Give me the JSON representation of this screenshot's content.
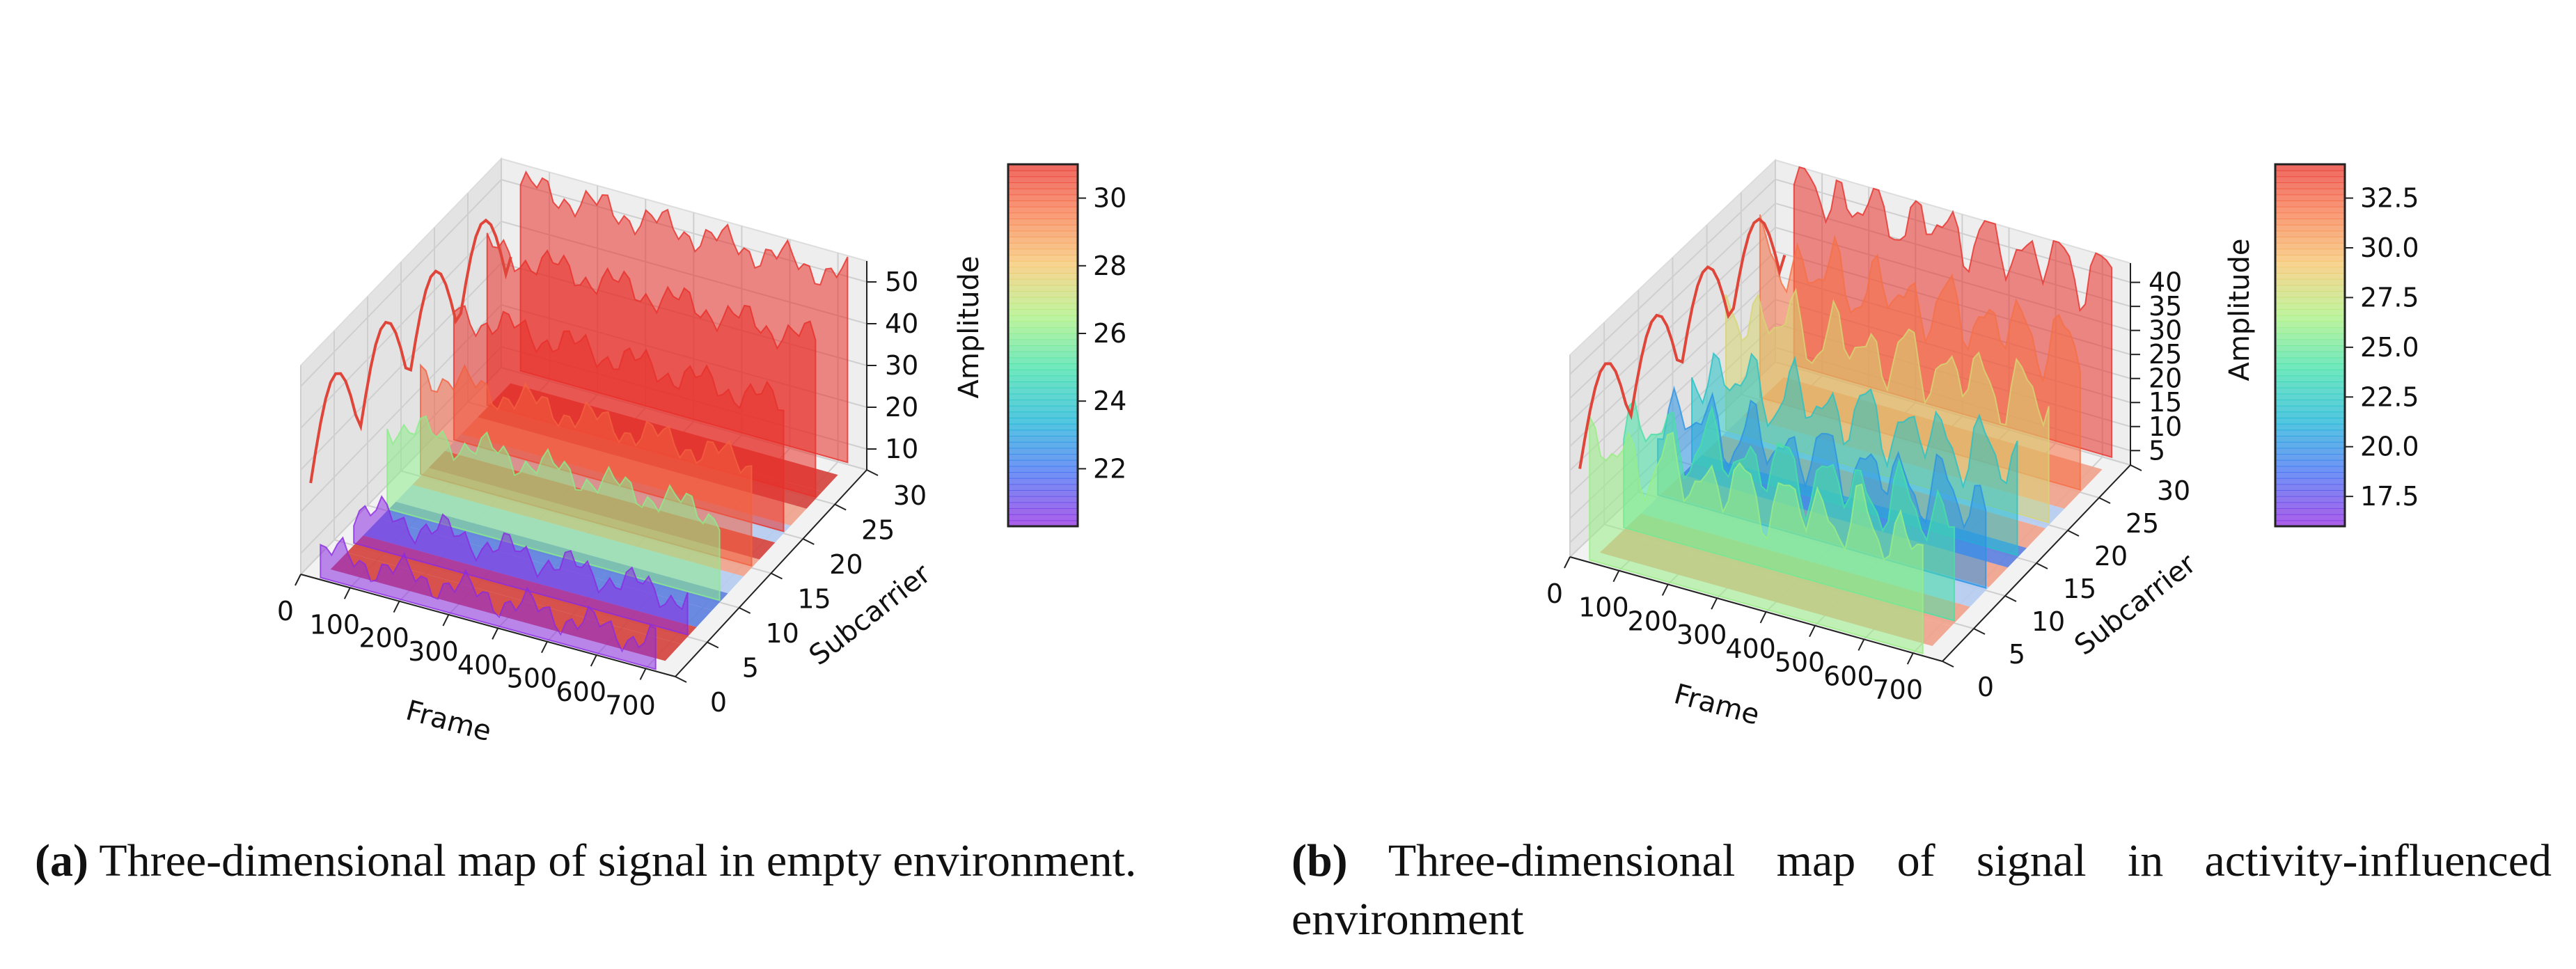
{
  "colors": {
    "axis": "#222222",
    "pane_back": "#eeeeee",
    "pane_side": "#e3e3e3",
    "pane_floor": "#f2f2f2",
    "grid": "#cfcfcf",
    "rainbow": [
      "#8b2be2",
      "#3f6df2",
      "#19b4d6",
      "#3fe0a8",
      "#a9f07f",
      "#f4c66b",
      "#f87a4b",
      "#e8302a"
    ],
    "coolwarm": [
      "#3b4cc0",
      "#7a9df8",
      "#c0d4f5",
      "#f2cbb7",
      "#ee8468",
      "#b40426"
    ]
  },
  "chart_data": [
    {
      "type": "surface3d",
      "panel": "a",
      "xlabel": "Frame",
      "ylabel": "Subcarrier",
      "zlabel": "Amplitude",
      "x_range": [
        0,
        760
      ],
      "y_range": [
        0,
        30
      ],
      "z_range": [
        5,
        55
      ],
      "x_ticks": [
        "0",
        "100",
        "200",
        "300",
        "400",
        "500",
        "600",
        "700"
      ],
      "y_ticks": [
        "0",
        "5",
        "10",
        "15",
        "20",
        "25",
        "30"
      ],
      "z_ticks": [
        "10",
        "20",
        "30",
        "40",
        "50"
      ],
      "colorbar": {
        "min": 20.3,
        "max": 31,
        "ticks": [
          "22",
          "24",
          "26",
          "28",
          "30"
        ]
      },
      "subcarrier_mean_amplitude": [
        {
          "subcarrier": 0,
          "amplitude": 12
        },
        {
          "subcarrier": 5,
          "amplitude": 14
        },
        {
          "subcarrier": 10,
          "amplitude": 26
        },
        {
          "subcarrier": 15,
          "amplitude": 30
        },
        {
          "subcarrier": 20,
          "amplitude": 36
        },
        {
          "subcarrier": 25,
          "amplitude": 43
        },
        {
          "subcarrier": 30,
          "amplitude": 50
        }
      ],
      "contour_floor_bands": [
        "red",
        "red",
        "blue",
        "blue",
        "light-blue",
        "salmon",
        "red",
        "light-blue",
        "salmon",
        "red",
        "red"
      ]
    },
    {
      "type": "surface3d",
      "panel": "b",
      "xlabel": "Frame",
      "ylabel": "Subcarrier",
      "zlabel": "Amplitude",
      "x_range": [
        0,
        760
      ],
      "y_range": [
        0,
        30
      ],
      "z_range": [
        2,
        44
      ],
      "x_ticks": [
        "0",
        "100",
        "200",
        "300",
        "400",
        "500",
        "600",
        "700"
      ],
      "y_ticks": [
        "0",
        "5",
        "10",
        "15",
        "20",
        "25",
        "30"
      ],
      "z_ticks": [
        "5",
        "10",
        "15",
        "20",
        "25",
        "30",
        "35",
        "40"
      ],
      "colorbar": {
        "min": 16,
        "max": 34.2,
        "ticks": [
          "17.5",
          "20.0",
          "22.5",
          "25.0",
          "27.5",
          "30.0",
          "32.5"
        ]
      },
      "subcarrier_mean_amplitude": [
        {
          "subcarrier": 0,
          "amplitude": 26
        },
        {
          "subcarrier": 5,
          "amplitude": 24
        },
        {
          "subcarrier": 10,
          "amplitude": 20
        },
        {
          "subcarrier": 15,
          "amplitude": 22
        },
        {
          "subcarrier": 20,
          "amplitude": 28
        },
        {
          "subcarrier": 25,
          "amplitude": 32
        },
        {
          "subcarrier": 30,
          "amplitude": 40
        }
      ],
      "contour_floor_bands": [
        "salmon",
        "salmon",
        "light-blue",
        "salmon",
        "blue",
        "salmon",
        "light-blue",
        "salmon",
        "salmon"
      ]
    }
  ],
  "captions": [
    {
      "label": "(a)",
      "text": "Three-dimensional map of signal in empty environment."
    },
    {
      "label": "(b)",
      "text": "Three-dimensional map of signal in activity-influenced environment"
    }
  ]
}
